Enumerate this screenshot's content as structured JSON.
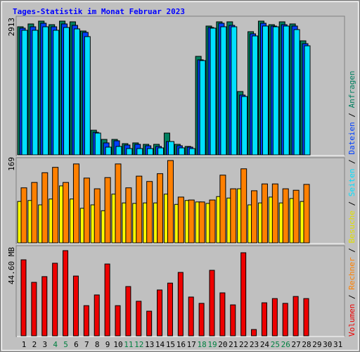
{
  "title": "Tages-Statistik im Monat Februar 2023",
  "legend_separator": " / ",
  "weekend_days": [
    "4",
    "5",
    "11",
    "12",
    "18",
    "19",
    "25",
    "26"
  ],
  "weekend_color": "#008040",
  "chart_data": [
    {
      "type": "bar",
      "ylim": [
        0,
        2913
      ],
      "yticks": [
        2913
      ],
      "series": [
        {
          "name": "Anfragen",
          "color": "#008060",
          "values": [
            2790,
            2852,
            2913,
            2836,
            2913,
            2898,
            2698,
            537,
            337,
            337,
            245,
            261,
            230,
            230,
            475,
            230,
            184,
            2146,
            2806,
            2898,
            2898,
            1380,
            2683,
            2913,
            2836,
            2898,
            2852,
            2484,
            null,
            null,
            null
          ]
        },
        {
          "name": "Dateien",
          "color": "#0040ff",
          "values": [
            2760,
            2790,
            2867,
            2790,
            2852,
            2821,
            2668,
            491,
            261,
            307,
            215,
            230,
            199,
            184,
            291,
            199,
            169,
            2070,
            2775,
            2867,
            2821,
            1303,
            2637,
            2867,
            2806,
            2836,
            2806,
            2422,
            null,
            null,
            null
          ]
        },
        {
          "name": "Seiten",
          "color": "#00e0ff",
          "values": [
            2714,
            2714,
            2790,
            2714,
            2775,
            2744,
            2576,
            475,
            169,
            184,
            138,
            138,
            138,
            153,
            291,
            153,
            138,
            2054,
            2760,
            2790,
            2790,
            1272,
            2591,
            2806,
            2790,
            2806,
            2729,
            2376,
            null,
            null,
            null
          ]
        }
      ]
    },
    {
      "type": "bar",
      "ylim": [
        0,
        169
      ],
      "yticks": [
        169
      ],
      "series": [
        {
          "name": "Besuche",
          "color": "#ffff00",
          "values": [
            85,
            87,
            78,
            90,
            117,
            90,
            71,
            78,
            66,
            100,
            82,
            81,
            82,
            82,
            100,
            79,
            87,
            84,
            81,
            95,
            92,
            111,
            78,
            82,
            94,
            82,
            91,
            85,
            null,
            null,
            null
          ]
        },
        {
          "name": "Rechner",
          "color": "#ff8000",
          "values": [
            113,
            124,
            144,
            155,
            124,
            162,
            133,
            111,
            134,
            162,
            113,
            137,
            126,
            142,
            169,
            94,
            88,
            84,
            88,
            139,
            111,
            152,
            107,
            121,
            121,
            111,
            108,
            120,
            null,
            null,
            null
          ]
        }
      ]
    },
    {
      "type": "bar",
      "ylim": [
        0,
        44.6
      ],
      "yticks": [
        {
          "value": 44.6,
          "label": "44.60 MB"
        }
      ],
      "categories": [
        "1",
        "2",
        "3",
        "4",
        "5",
        "6",
        "7",
        "8",
        "9",
        "10",
        "11",
        "12",
        "13",
        "14",
        "15",
        "16",
        "17",
        "18",
        "19",
        "20",
        "21",
        "22",
        "23",
        "24",
        "25",
        "26",
        "27",
        "28",
        "29",
        "30",
        "31"
      ],
      "series": [
        {
          "name": "Volumen",
          "color": "#ee0000",
          "values": [
            39.8,
            28.0,
            31.0,
            38.0,
            44.6,
            31.3,
            15.8,
            21.4,
            37.6,
            15.8,
            25.8,
            18.1,
            12.9,
            24.0,
            27.6,
            33.2,
            20.3,
            17.0,
            34.3,
            22.5,
            16.2,
            43.5,
            3.3,
            17.3,
            19.5,
            17.0,
            20.6,
            19.5,
            null,
            null,
            null
          ]
        }
      ]
    }
  ]
}
